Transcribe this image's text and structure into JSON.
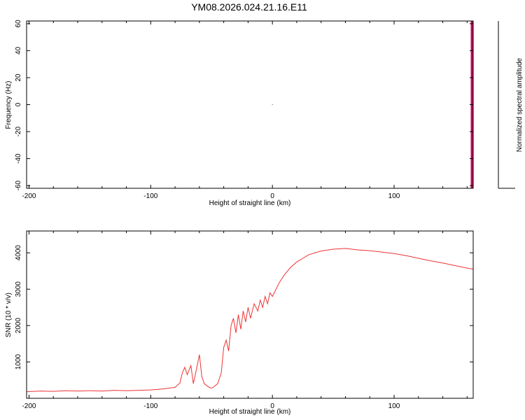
{
  "figure": {
    "title": "YM08.2026.024.21.16.E11"
  },
  "chart_data": [
    {
      "type": "heatmap",
      "xlabel": "Height of straight line (km)",
      "ylabel": "Frequency (Hz)",
      "colorbar_label": "Normalized spectral amplitude",
      "xlim": [
        -202,
        165
      ],
      "ylim": [
        -62,
        62
      ],
      "x_ticks": [
        -200,
        -100,
        0,
        100
      ],
      "x_tick_labels": [
        "-200",
        "-100",
        "0",
        "100"
      ],
      "y_ticks": [
        60,
        40,
        20,
        0,
        -20,
        -40,
        -60
      ],
      "y_tick_labels": [
        "60",
        "40",
        "20",
        "0",
        "-20",
        "-40",
        "-60"
      ],
      "high_amplitude_band": {
        "x_from": 163,
        "x_to": 165,
        "color": "#cc0055"
      },
      "center_mark": {
        "x": 0,
        "y": 0
      }
    },
    {
      "type": "line",
      "xlabel": "Height of straight line (km)",
      "ylabel": "SNR (10 * v/v)",
      "xlim": [
        -202,
        165
      ],
      "ylim": [
        0,
        4600
      ],
      "x_ticks": [
        -200,
        -100,
        0,
        100
      ],
      "x_tick_labels": [
        "-200",
        "-100",
        "0",
        "100"
      ],
      "y_ticks": [
        1000,
        2000,
        3000,
        4000
      ],
      "y_tick_labels": [
        "1000",
        "2000",
        "3000",
        "4000"
      ],
      "series": [
        {
          "color": "#ee3333",
          "points": [
            [
              -202,
              180
            ],
            [
              -190,
              200
            ],
            [
              -180,
              190
            ],
            [
              -170,
              210
            ],
            [
              -160,
              200
            ],
            [
              -150,
              210
            ],
            [
              -140,
              200
            ],
            [
              -130,
              220
            ],
            [
              -120,
              210
            ],
            [
              -110,
              220
            ],
            [
              -100,
              230
            ],
            [
              -95,
              240
            ],
            [
              -90,
              260
            ],
            [
              -85,
              280
            ],
            [
              -80,
              300
            ],
            [
              -76,
              420
            ],
            [
              -74,
              700
            ],
            [
              -72,
              850
            ],
            [
              -70,
              650
            ],
            [
              -67,
              900
            ],
            [
              -65,
              400
            ],
            [
              -63,
              700
            ],
            [
              -60,
              1200
            ],
            [
              -58,
              600
            ],
            [
              -56,
              400
            ],
            [
              -54,
              350
            ],
            [
              -52,
              300
            ],
            [
              -50,
              280
            ],
            [
              -48,
              320
            ],
            [
              -45,
              400
            ],
            [
              -42,
              700
            ],
            [
              -40,
              1400
            ],
            [
              -38,
              1600
            ],
            [
              -36,
              1300
            ],
            [
              -34,
              2000
            ],
            [
              -32,
              2200
            ],
            [
              -30,
              1800
            ],
            [
              -28,
              2300
            ],
            [
              -26,
              1900
            ],
            [
              -24,
              2400
            ],
            [
              -22,
              2100
            ],
            [
              -20,
              2500
            ],
            [
              -18,
              2200
            ],
            [
              -15,
              2600
            ],
            [
              -12,
              2400
            ],
            [
              -10,
              2700
            ],
            [
              -8,
              2500
            ],
            [
              -6,
              2800
            ],
            [
              -4,
              2600
            ],
            [
              -2,
              2900
            ],
            [
              0,
              2800
            ],
            [
              3,
              3000
            ],
            [
              6,
              3200
            ],
            [
              10,
              3400
            ],
            [
              15,
              3600
            ],
            [
              20,
              3750
            ],
            [
              25,
              3850
            ],
            [
              30,
              3950
            ],
            [
              40,
              4050
            ],
            [
              50,
              4100
            ],
            [
              60,
              4120
            ],
            [
              70,
              4080
            ],
            [
              80,
              4060
            ],
            [
              90,
              4020
            ],
            [
              100,
              3980
            ],
            [
              110,
              3920
            ],
            [
              120,
              3850
            ],
            [
              130,
              3780
            ],
            [
              140,
              3720
            ],
            [
              150,
              3650
            ],
            [
              160,
              3580
            ],
            [
              165,
              3550
            ]
          ]
        }
      ]
    }
  ]
}
